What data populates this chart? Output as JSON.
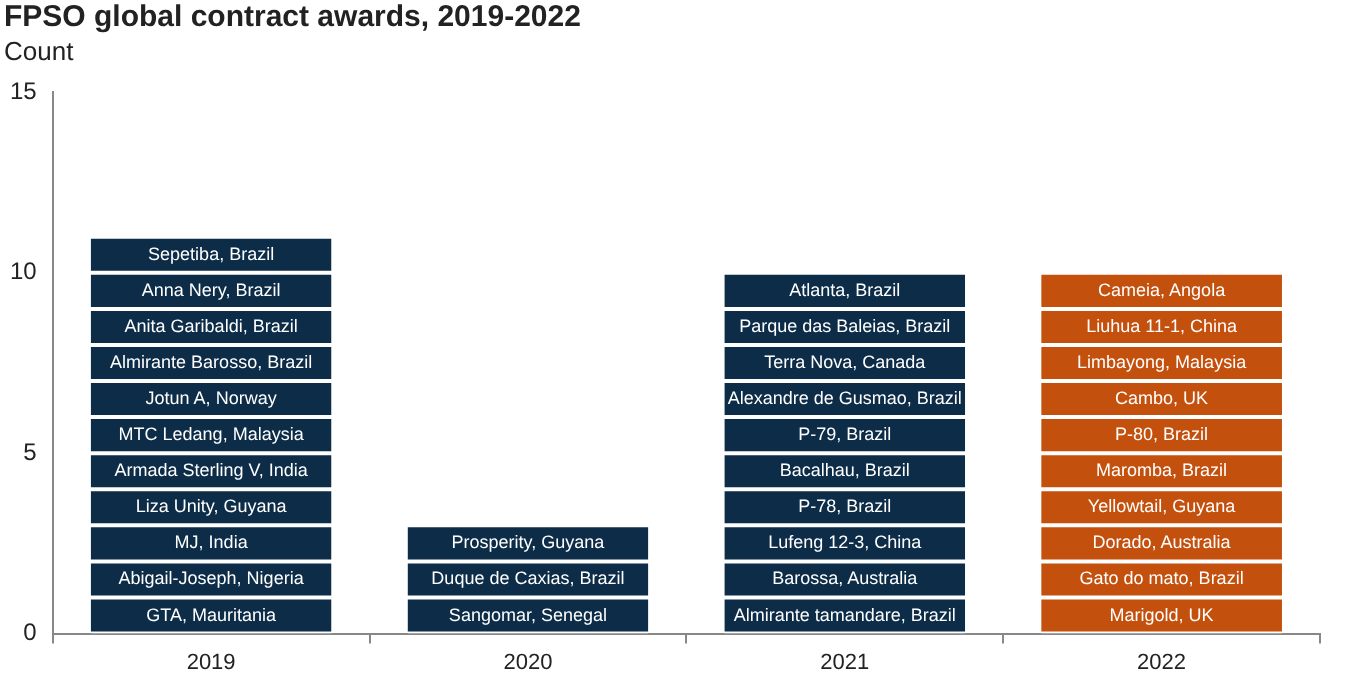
{
  "chart_data": {
    "type": "bar",
    "stacked": true,
    "title": "FPSO global contract awards, 2019-2022",
    "subtitle": "Count",
    "categories": [
      "2019",
      "2020",
      "2021",
      "2022"
    ],
    "ylim": [
      0,
      15
    ],
    "yticks": [
      0,
      5,
      10,
      15
    ],
    "grid": false,
    "legend": false,
    "series": [
      {
        "colors": [
          "#0c2c48",
          "#0c2c48",
          "#0c2c48",
          "#c4500e"
        ],
        "values": [
          1,
          1,
          1,
          1
        ],
        "value_labels": [
          "GTA, Mauritania",
          "Sangomar, Senegal",
          "Almirante tamandare, Brazil",
          "Marigold, UK"
        ]
      },
      {
        "colors": [
          "#0c2c48",
          "#0c2c48",
          "#0c2c48",
          "#c4500e"
        ],
        "values": [
          1,
          1,
          1,
          1
        ],
        "value_labels": [
          "Abigail-Joseph, Nigeria",
          "Duque de Caxias, Brazil",
          "Barossa, Australia",
          "Gato do mato, Brazil"
        ]
      },
      {
        "colors": [
          "#0c2c48",
          "#0c2c48",
          "#0c2c48",
          "#c4500e"
        ],
        "values": [
          1,
          1,
          1,
          1
        ],
        "value_labels": [
          "MJ, India",
          "Prosperity, Guyana",
          "Lufeng 12-3, China",
          "Dorado, Australia"
        ]
      },
      {
        "colors": [
          "#0c2c48",
          "#0c2c48",
          "#0c2c48",
          "#c4500e"
        ],
        "values": [
          1,
          null,
          1,
          1
        ],
        "value_labels": [
          "Liza Unity, Guyana",
          null,
          "P-78, Brazil",
          "Yellowtail, Guyana"
        ]
      },
      {
        "colors": [
          "#0c2c48",
          "#0c2c48",
          "#0c2c48",
          "#c4500e"
        ],
        "values": [
          1,
          null,
          1,
          1
        ],
        "value_labels": [
          "Armada Sterling V, India",
          null,
          "Bacalhau, Brazil",
          "Maromba, Brazil"
        ]
      },
      {
        "colors": [
          "#0c2c48",
          "#0c2c48",
          "#0c2c48",
          "#c4500e"
        ],
        "values": [
          1,
          null,
          1,
          1
        ],
        "value_labels": [
          "MTC Ledang, Malaysia",
          null,
          "P-79, Brazil",
          "P-80, Brazil"
        ]
      },
      {
        "colors": [
          "#0c2c48",
          "#0c2c48",
          "#0c2c48",
          "#c4500e"
        ],
        "values": [
          1,
          null,
          1,
          1
        ],
        "value_labels": [
          "Jotun A, Norway",
          null,
          "Alexandre de Gusmao, Brazil",
          "Cambo, UK"
        ]
      },
      {
        "colors": [
          "#0c2c48",
          "#0c2c48",
          "#0c2c48",
          "#c4500e"
        ],
        "values": [
          1,
          null,
          1,
          1
        ],
        "value_labels": [
          "Almirante Barosso, Brazil",
          null,
          "Terra Nova, Canada",
          "Limbayong, Malaysia"
        ]
      },
      {
        "colors": [
          "#0c2c48",
          "#0c2c48",
          "#0c2c48",
          "#c4500e"
        ],
        "values": [
          1,
          null,
          1,
          1
        ],
        "value_labels": [
          "Anita Garibaldi, Brazil",
          null,
          "Parque das Baleias, Brazil",
          "Liuhua 11-1, China"
        ]
      },
      {
        "colors": [
          "#0c2c48",
          "#0c2c48",
          "#0c2c48",
          "#c4500e"
        ],
        "values": [
          1,
          null,
          1,
          1
        ],
        "value_labels": [
          "Anna Nery, Brazil",
          null,
          "Atlanta, Brazil",
          "Cameia, Angola"
        ]
      },
      {
        "colors": [
          "#0c2c48",
          "#0c2c48",
          "#0c2c48",
          "#c4500e"
        ],
        "values": [
          1,
          null,
          null,
          null
        ],
        "value_labels": [
          "Sepetiba, Brazil",
          null,
          null,
          null
        ]
      }
    ]
  }
}
